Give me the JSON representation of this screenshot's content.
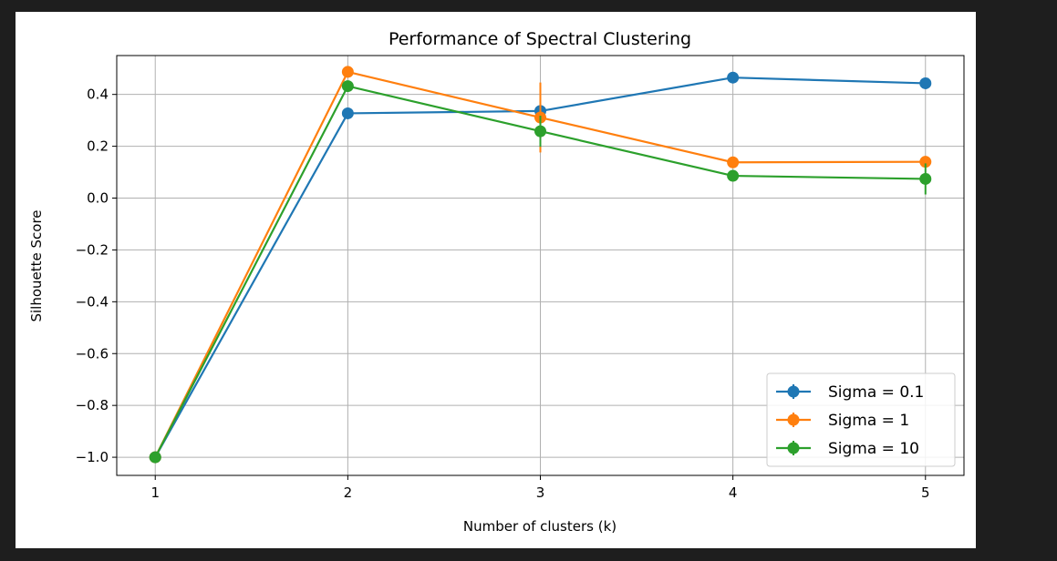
{
  "chart_data": {
    "type": "line",
    "title": "Performance of Spectral Clustering",
    "xlabel": "Number of clusters (k)",
    "ylabel": "Silhouette Score",
    "x": [
      1,
      2,
      3,
      4,
      5
    ],
    "xlim": [
      0.8,
      5.2
    ],
    "ylim": [
      -1.07,
      0.55
    ],
    "xticks": [
      1,
      2,
      3,
      4,
      5
    ],
    "yticks": [
      -1.0,
      -0.8,
      -0.6,
      -0.4,
      -0.2,
      0.0,
      0.2,
      0.4
    ],
    "ytick_labels": [
      "−1.0",
      "−0.8",
      "−0.6",
      "−0.4",
      "−0.2",
      "0.0",
      "0.2",
      "0.4"
    ],
    "grid": true,
    "legend_position": "lower-right",
    "series": [
      {
        "name": "Sigma = 0.1",
        "color": "#1f77b4",
        "values": [
          -1.0,
          0.327,
          0.336,
          0.465,
          0.443
        ],
        "errors": [
          0,
          0,
          0,
          0,
          0
        ]
      },
      {
        "name": "Sigma = 1",
        "color": "#ff7f0e",
        "values": [
          -1.0,
          0.487,
          0.311,
          0.138,
          0.14
        ],
        "errors": [
          0,
          0,
          0.135,
          0,
          0
        ]
      },
      {
        "name": "Sigma = 10",
        "color": "#2ca02c",
        "values": [
          -1.0,
          0.432,
          0.258,
          0.086,
          0.074
        ],
        "errors": [
          0,
          0,
          0.06,
          0,
          0.06
        ]
      }
    ]
  }
}
